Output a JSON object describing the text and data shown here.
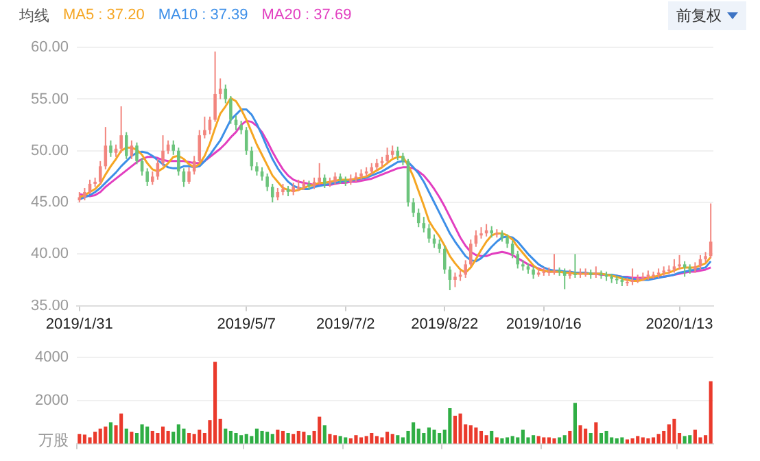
{
  "chart_data": [
    {
      "type": "candlestick",
      "legend_title": "均线",
      "legend": "top left",
      "grid": "y",
      "annotations": [
        "前复权"
      ],
      "categories": [
        "2019/1/31",
        null,
        null,
        null,
        null,
        null,
        null,
        null,
        null,
        null,
        null,
        null,
        null,
        null,
        null,
        null,
        null,
        null,
        null,
        null,
        null,
        null,
        null,
        null,
        null,
        null,
        null,
        null,
        null,
        null,
        null,
        null,
        "2019/5/7",
        null,
        null,
        null,
        null,
        null,
        null,
        null,
        null,
        null,
        null,
        null,
        null,
        null,
        null,
        null,
        null,
        null,
        null,
        "2019/7/2",
        null,
        null,
        null,
        null,
        null,
        null,
        null,
        null,
        null,
        null,
        null,
        null,
        null,
        null,
        null,
        null,
        null,
        null,
        "2019/8/22",
        null,
        null,
        null,
        null,
        null,
        null,
        null,
        null,
        null,
        null,
        null,
        null,
        null,
        null,
        null,
        null,
        null,
        null,
        "2019/10/16",
        null,
        null,
        null,
        null,
        null,
        null,
        null,
        null,
        null,
        null,
        null,
        null,
        null,
        null,
        null,
        null,
        null,
        null,
        null,
        null,
        null,
        null,
        null,
        null,
        null,
        "2020/1/13",
        null,
        null,
        null,
        null,
        null,
        null
      ],
      "ohlc": [
        [
          45.2,
          46.0,
          45.0,
          45.5
        ],
        [
          45.5,
          46.4,
          45.2,
          46.0
        ],
        [
          46.0,
          47.2,
          45.8,
          46.8
        ],
        [
          46.8,
          47.4,
          46.5,
          47.0
        ],
        [
          47.0,
          49.0,
          46.8,
          48.5
        ],
        [
          48.5,
          52.3,
          48.2,
          50.5
        ],
        [
          50.5,
          51.0,
          49.4,
          49.8
        ],
        [
          49.8,
          50.6,
          49.4,
          50.2
        ],
        [
          50.2,
          54.3,
          49.8,
          51.5
        ],
        [
          51.5,
          51.8,
          49.2,
          49.5
        ],
        [
          49.5,
          51.0,
          49.2,
          50.5
        ],
        [
          50.5,
          50.8,
          48.7,
          49.0
        ],
        [
          49.0,
          49.3,
          47.6,
          48.0
        ],
        [
          48.0,
          48.3,
          46.6,
          47.0
        ],
        [
          47.0,
          48.0,
          46.7,
          47.5
        ],
        [
          47.5,
          49.2,
          47.2,
          48.8
        ],
        [
          48.8,
          51.5,
          48.5,
          50.0
        ],
        [
          50.0,
          51.0,
          49.7,
          50.6
        ],
        [
          50.6,
          51.0,
          49.6,
          50.0
        ],
        [
          50.0,
          50.3,
          47.6,
          48.0
        ],
        [
          48.0,
          48.3,
          46.5,
          47.0
        ],
        [
          47.0,
          48.4,
          46.8,
          48.0
        ],
        [
          48.0,
          49.5,
          47.7,
          49.0
        ],
        [
          49.0,
          52.0,
          48.8,
          51.5
        ],
        [
          51.5,
          53.3,
          51.2,
          52.0
        ],
        [
          52.0,
          53.3,
          51.6,
          53.0
        ],
        [
          53.0,
          59.6,
          52.8,
          55.5
        ],
        [
          55.5,
          57.0,
          55.0,
          56.0
        ],
        [
          56.0,
          56.4,
          54.6,
          55.0
        ],
        [
          55.0,
          55.3,
          52.6,
          53.0
        ],
        [
          53.0,
          53.4,
          52.0,
          52.5
        ],
        [
          52.5,
          52.9,
          51.6,
          52.0
        ],
        [
          52.0,
          52.3,
          49.6,
          50.0
        ],
        [
          50.0,
          50.4,
          48.1,
          48.5
        ],
        [
          48.5,
          48.9,
          47.6,
          48.0
        ],
        [
          48.0,
          48.4,
          47.1,
          47.5
        ],
        [
          47.5,
          47.8,
          46.1,
          46.5
        ],
        [
          46.5,
          46.8,
          45.0,
          45.5
        ],
        [
          45.5,
          46.4,
          45.2,
          46.0
        ],
        [
          46.0,
          46.8,
          45.7,
          46.3
        ],
        [
          46.3,
          46.6,
          45.6,
          46.0
        ],
        [
          46.0,
          46.9,
          45.7,
          46.5
        ],
        [
          46.5,
          47.2,
          46.1,
          46.5
        ],
        [
          46.5,
          47.2,
          46.2,
          46.8
        ],
        [
          46.8,
          47.1,
          46.2,
          46.6
        ],
        [
          46.6,
          47.4,
          46.3,
          47.0
        ],
        [
          47.0,
          48.8,
          46.7,
          47.4
        ],
        [
          47.4,
          47.7,
          46.4,
          46.8
        ],
        [
          46.8,
          47.4,
          46.5,
          47.0
        ],
        [
          47.0,
          47.9,
          46.7,
          47.5
        ],
        [
          47.5,
          47.8,
          46.8,
          47.2
        ],
        [
          47.2,
          47.5,
          46.6,
          47.0
        ],
        [
          47.0,
          47.7,
          46.7,
          47.3
        ],
        [
          47.3,
          47.9,
          47.0,
          47.5
        ],
        [
          47.5,
          48.2,
          47.2,
          47.8
        ],
        [
          47.8,
          48.4,
          47.5,
          48.0
        ],
        [
          48.0,
          48.8,
          47.7,
          48.4
        ],
        [
          48.4,
          49.2,
          48.1,
          48.8
        ],
        [
          48.8,
          49.4,
          48.4,
          49.0
        ],
        [
          49.0,
          50.3,
          48.7,
          49.6
        ],
        [
          49.6,
          50.5,
          49.3,
          50.0
        ],
        [
          50.0,
          50.4,
          49.1,
          49.5
        ],
        [
          49.5,
          49.8,
          48.6,
          49.0
        ],
        [
          49.0,
          49.2,
          44.6,
          45.0
        ],
        [
          45.0,
          45.4,
          43.6,
          44.0
        ],
        [
          44.0,
          44.4,
          42.6,
          43.0
        ],
        [
          43.0,
          43.6,
          42.1,
          42.5
        ],
        [
          42.5,
          42.9,
          41.1,
          41.5
        ],
        [
          41.5,
          41.9,
          40.6,
          41.0
        ],
        [
          41.0,
          41.4,
          40.1,
          40.5
        ],
        [
          40.5,
          40.8,
          38.1,
          38.5
        ],
        [
          38.5,
          38.8,
          36.5,
          37.5
        ],
        [
          37.5,
          38.2,
          36.8,
          37.8
        ],
        [
          37.8,
          38.4,
          37.4,
          38.0
        ],
        [
          38.0,
          39.4,
          37.7,
          39.0
        ],
        [
          39.0,
          41.4,
          38.8,
          41.0
        ],
        [
          41.0,
          42.3,
          40.7,
          41.8
        ],
        [
          41.8,
          42.6,
          41.5,
          42.0
        ],
        [
          42.0,
          42.9,
          41.7,
          42.3
        ],
        [
          42.3,
          42.7,
          41.6,
          42.0
        ],
        [
          42.0,
          42.4,
          41.6,
          42.0
        ],
        [
          42.0,
          42.3,
          41.2,
          41.6
        ],
        [
          41.6,
          41.9,
          40.6,
          41.0
        ],
        [
          41.0,
          41.3,
          39.6,
          40.0
        ],
        [
          40.0,
          40.3,
          38.6,
          39.0
        ],
        [
          39.0,
          39.4,
          38.4,
          38.8
        ],
        [
          38.8,
          39.1,
          38.1,
          38.5
        ],
        [
          38.5,
          38.8,
          37.6,
          38.0
        ],
        [
          38.0,
          38.6,
          37.8,
          38.2
        ],
        [
          38.2,
          38.7,
          37.9,
          38.3
        ],
        [
          38.3,
          38.7,
          37.9,
          38.3
        ],
        [
          38.3,
          40.0,
          38.0,
          38.4
        ],
        [
          38.4,
          38.7,
          37.9,
          38.3
        ],
        [
          38.3,
          38.6,
          36.6,
          37.9
        ],
        [
          37.9,
          38.5,
          37.6,
          38.1
        ],
        [
          38.1,
          40.0,
          37.7,
          38.0
        ],
        [
          38.0,
          38.6,
          37.7,
          38.2
        ],
        [
          38.2,
          38.6,
          37.8,
          38.2
        ],
        [
          38.2,
          38.5,
          37.6,
          38.0
        ],
        [
          38.0,
          38.8,
          37.7,
          38.1
        ],
        [
          38.1,
          38.4,
          37.6,
          38.0
        ],
        [
          38.0,
          38.3,
          37.4,
          37.8
        ],
        [
          37.8,
          38.1,
          37.2,
          37.6
        ],
        [
          37.6,
          37.9,
          37.1,
          37.5
        ],
        [
          37.5,
          37.8,
          36.9,
          37.3
        ],
        [
          37.3,
          37.7,
          36.9,
          37.3
        ],
        [
          37.3,
          38.6,
          37.0,
          37.5
        ],
        [
          37.5,
          38.0,
          37.2,
          37.7
        ],
        [
          37.7,
          38.2,
          37.4,
          37.8
        ],
        [
          37.8,
          38.4,
          37.5,
          38.0
        ],
        [
          38.0,
          38.3,
          37.6,
          38.0
        ],
        [
          38.0,
          38.6,
          37.7,
          38.2
        ],
        [
          38.2,
          38.8,
          37.9,
          38.4
        ],
        [
          38.4,
          38.9,
          38.1,
          38.5
        ],
        [
          38.5,
          39.5,
          38.2,
          38.8
        ],
        [
          38.8,
          39.9,
          38.5,
          39.0
        ],
        [
          39.0,
          39.3,
          37.8,
          38.7
        ],
        [
          38.7,
          39.0,
          38.1,
          38.5
        ],
        [
          38.5,
          39.2,
          38.2,
          38.8
        ],
        [
          38.8,
          39.9,
          38.5,
          39.5
        ],
        [
          39.5,
          40.2,
          39.2,
          39.8
        ],
        [
          39.8,
          44.9,
          39.6,
          41.2
        ]
      ],
      "colors": [
        "#f2857e",
        "#f2857e",
        "#f2857e",
        "#f2857e",
        "#f2857e",
        "#f2857e",
        "#6cc47c",
        "#f2857e",
        "#f2857e",
        "#6cc47c",
        "#f2857e",
        "#6cc47c",
        "#6cc47c",
        "#6cc47c",
        "#f2857e",
        "#f2857e",
        "#f2857e",
        "#f2857e",
        "#6cc47c",
        "#6cc47c",
        "#6cc47c",
        "#f2857e",
        "#f2857e",
        "#f2857e",
        "#f2857e",
        "#f2857e",
        "#f2857e",
        "#f2857e",
        "#6cc47c",
        "#6cc47c",
        "#6cc47c",
        "#6cc47c",
        "#6cc47c",
        "#6cc47c",
        "#6cc47c",
        "#6cc47c",
        "#6cc47c",
        "#6cc47c",
        "#f2857e",
        "#f2857e",
        "#6cc47c",
        "#f2857e",
        "#f2857e",
        "#f2857e",
        "#6cc47c",
        "#f2857e",
        "#f2857e",
        "#6cc47c",
        "#f2857e",
        "#f2857e",
        "#6cc47c",
        "#6cc47c",
        "#f2857e",
        "#f2857e",
        "#f2857e",
        "#f2857e",
        "#f2857e",
        "#f2857e",
        "#f2857e",
        "#f2857e",
        "#f2857e",
        "#6cc47c",
        "#6cc47c",
        "#6cc47c",
        "#6cc47c",
        "#6cc47c",
        "#6cc47c",
        "#6cc47c",
        "#6cc47c",
        "#6cc47c",
        "#6cc47c",
        "#6cc47c",
        "#f2857e",
        "#f2857e",
        "#f2857e",
        "#f2857e",
        "#f2857e",
        "#f2857e",
        "#f2857e",
        "#6cc47c",
        "#f2857e",
        "#6cc47c",
        "#6cc47c",
        "#6cc47c",
        "#6cc47c",
        "#6cc47c",
        "#6cc47c",
        "#6cc47c",
        "#f2857e",
        "#f2857e",
        "#f2857e",
        "#f2857e",
        "#6cc47c",
        "#6cc47c",
        "#f2857e",
        "#6cc47c",
        "#f2857e",
        "#f2857e",
        "#6cc47c",
        "#f2857e",
        "#6cc47c",
        "#6cc47c",
        "#6cc47c",
        "#6cc47c",
        "#6cc47c",
        "#f2857e",
        "#f2857e",
        "#f2857e",
        "#f2857e",
        "#f2857e",
        "#f2857e",
        "#f2857e",
        "#f2857e",
        "#f2857e",
        "#f2857e",
        "#f2857e",
        "#6cc47c",
        "#6cc47c",
        "#f2857e",
        "#f2857e",
        "#f2857e",
        "#f2857e"
      ],
      "series": [
        {
          "name": "MA5 : 37.20",
          "type": "line",
          "color": "#f5a623",
          "values": [
            45.5,
            45.7,
            46.0,
            46.3,
            46.8,
            47.7,
            48.5,
            49.2,
            50.0,
            50.3,
            50.3,
            50.1,
            49.6,
            48.8,
            48.2,
            48.0,
            48.3,
            48.8,
            49.4,
            49.5,
            49.2,
            48.7,
            48.4,
            48.7,
            49.5,
            50.7,
            52.2,
            53.6,
            54.3,
            55.1,
            54.8,
            54.0,
            53.0,
            51.8,
            50.6,
            49.6,
            48.6,
            47.6,
            47.0,
            46.4,
            46.2,
            46.1,
            46.2,
            46.4,
            46.6,
            46.7,
            46.9,
            46.9,
            47.0,
            47.1,
            47.2,
            47.2,
            47.2,
            47.3,
            47.4,
            47.5,
            47.8,
            48.1,
            48.4,
            48.8,
            49.2,
            49.4,
            49.4,
            48.6,
            47.5,
            46.1,
            44.7,
            43.2,
            42.4,
            41.7,
            40.8,
            39.8,
            39.1,
            38.5,
            38.2,
            38.7,
            39.5,
            40.4,
            41.2,
            41.8,
            42.0,
            42.0,
            41.8,
            41.4,
            40.7,
            40.1,
            39.5,
            38.9,
            38.5,
            38.4,
            38.3,
            38.3,
            38.3,
            38.2,
            38.2,
            38.1,
            38.1,
            38.1,
            38.1,
            38.1,
            38.1,
            38.0,
            37.9,
            37.8,
            37.6,
            37.5,
            37.4,
            37.4,
            37.5,
            37.7,
            37.8,
            37.9,
            38.1,
            38.2,
            38.4,
            38.6,
            38.7,
            38.7,
            38.7,
            38.9,
            39.1,
            39.7
          ]
        },
        {
          "name": "MA10 : 37.39",
          "type": "line",
          "color": "#3d8fe8",
          "values": [
            45.3,
            45.5,
            45.7,
            46.0,
            46.4,
            46.9,
            47.4,
            47.9,
            48.5,
            49.0,
            49.5,
            49.8,
            49.9,
            49.8,
            49.5,
            49.1,
            48.7,
            48.4,
            48.3,
            48.3,
            48.5,
            48.5,
            48.4,
            48.5,
            49.0,
            49.6,
            50.3,
            51.0,
            52.0,
            53.0,
            53.5,
            54.0,
            54.0,
            53.5,
            52.6,
            51.5,
            50.3,
            49.2,
            48.3,
            47.6,
            47.0,
            46.6,
            46.4,
            46.3,
            46.3,
            46.5,
            46.6,
            46.7,
            46.8,
            46.9,
            47.0,
            47.1,
            47.1,
            47.2,
            47.3,
            47.4,
            47.6,
            47.8,
            48.0,
            48.3,
            48.6,
            48.9,
            49.0,
            48.9,
            48.4,
            47.8,
            47.0,
            46.0,
            45.0,
            44.0,
            43.0,
            42.0,
            41.2,
            40.5,
            39.8,
            39.4,
            39.3,
            39.6,
            40.1,
            40.7,
            41.2,
            41.6,
            41.7,
            41.6,
            41.2,
            40.6,
            40.0,
            39.5,
            39.0,
            38.7,
            38.5,
            38.4,
            38.4,
            38.3,
            38.3,
            38.2,
            38.2,
            38.2,
            38.1,
            38.1,
            38.1,
            38.0,
            38.0,
            37.9,
            37.8,
            37.7,
            37.6,
            37.5,
            37.5,
            37.5,
            37.6,
            37.7,
            37.8,
            37.9,
            38.0,
            38.2,
            38.3,
            38.4,
            38.5,
            38.6,
            38.7,
            39.3
          ]
        },
        {
          "name": "MA20 : 37.69",
          "type": "line",
          "color": "#e23fc0",
          "values": [
            45.8,
            45.7,
            45.6,
            45.7,
            46.0,
            46.5,
            46.9,
            47.3,
            47.7,
            48.1,
            48.5,
            48.9,
            49.2,
            49.4,
            49.4,
            49.3,
            49.1,
            49.0,
            49.0,
            49.0,
            49.0,
            48.9,
            48.8,
            48.8,
            49.0,
            49.4,
            49.8,
            50.2,
            50.7,
            51.3,
            51.8,
            52.5,
            52.9,
            52.8,
            52.4,
            51.8,
            50.9,
            49.9,
            49.0,
            48.2,
            47.6,
            47.2,
            47.0,
            46.9,
            46.8,
            46.7,
            46.7,
            46.7,
            46.7,
            46.8,
            46.9,
            46.9,
            47.0,
            47.0,
            47.1,
            47.2,
            47.3,
            47.5,
            47.7,
            47.9,
            48.1,
            48.3,
            48.4,
            48.4,
            48.3,
            48.0,
            47.6,
            47.0,
            46.3,
            45.5,
            44.6,
            43.6,
            42.6,
            41.6,
            40.8,
            40.2,
            39.9,
            39.8,
            39.8,
            40.0,
            40.1,
            40.2,
            40.1,
            39.9,
            39.6,
            39.3,
            39.0,
            38.8,
            38.6,
            38.4,
            38.3,
            38.3,
            38.3,
            38.3,
            38.2,
            38.2,
            38.2,
            38.1,
            38.1,
            38.1,
            38.0,
            38.0,
            37.9,
            37.9,
            37.8,
            37.8,
            37.7,
            37.7,
            37.7,
            37.7,
            37.7,
            37.8,
            37.8,
            37.9,
            38.0,
            38.1,
            38.2,
            38.3,
            38.3,
            38.4,
            38.5,
            38.7
          ]
        }
      ],
      "ylim": [
        35,
        60
      ],
      "yticks": [
        {
          "value": 35,
          "label": "35.00"
        },
        {
          "value": 40,
          "label": "40.00"
        },
        {
          "value": 45,
          "label": "45.00"
        },
        {
          "value": 50,
          "label": "50.00"
        },
        {
          "value": 55,
          "label": "55.00"
        },
        {
          "value": 60,
          "label": "60.00"
        }
      ]
    },
    {
      "type": "bar",
      "ylabel": "万股",
      "grid": "y",
      "tick_labels": "y",
      "categories": [
        "2019/1/31",
        null,
        null,
        null,
        null,
        null,
        null,
        null,
        null,
        null,
        null,
        null,
        null,
        null,
        null,
        null,
        null,
        null,
        null,
        null,
        null,
        null,
        null,
        null,
        null,
        null,
        null,
        null,
        null,
        null,
        null,
        null,
        "2019/5/7",
        null,
        null,
        null,
        null,
        null,
        null,
        null,
        null,
        null,
        null,
        null,
        null,
        null,
        null,
        null,
        null,
        null,
        null,
        "2019/7/2",
        null,
        null,
        null,
        null,
        null,
        null,
        null,
        null,
        null,
        null,
        null,
        null,
        null,
        null,
        null,
        null,
        null,
        null,
        "2019/8/22",
        null,
        null,
        null,
        null,
        null,
        null,
        null,
        null,
        null,
        null,
        null,
        null,
        null,
        null,
        null,
        null,
        null,
        null,
        "2019/10/16",
        null,
        null,
        null,
        null,
        null,
        null,
        null,
        null,
        null,
        null,
        null,
        null,
        null,
        null,
        null,
        null,
        null,
        null,
        null,
        null,
        null,
        null,
        null,
        null,
        null,
        "2020/1/13",
        null,
        null,
        null,
        null,
        null,
        null
      ],
      "values": [
        450,
        420,
        300,
        550,
        700,
        800,
        1000,
        850,
        1400,
        700,
        550,
        500,
        900,
        800,
        600,
        500,
        800,
        600,
        550,
        900,
        700,
        500,
        450,
        650,
        500,
        1100,
        3800,
        1150,
        700,
        600,
        500,
        400,
        450,
        350,
        700,
        600,
        550,
        450,
        650,
        600,
        500,
        450,
        600,
        550,
        400,
        600,
        1250,
        850,
        450,
        400,
        350,
        300,
        250,
        400,
        300,
        350,
        500,
        350,
        300,
        550,
        450,
        400,
        300,
        600,
        1000,
        700,
        500,
        750,
        650,
        500,
        650,
        1650,
        1300,
        1400,
        900,
        850,
        750,
        600,
        400,
        600,
        300,
        250,
        300,
        350,
        300,
        650,
        300,
        400,
        350,
        300,
        300,
        250,
        300,
        400,
        600,
        1900,
        850,
        700,
        500,
        1000,
        500,
        600,
        300,
        250,
        300,
        200,
        250,
        350,
        300,
        250,
        300,
        450,
        600,
        900,
        1150,
        500,
        350,
        400,
        650,
        300,
        400,
        2900
      ],
      "colors": [
        "#ea3a2c",
        "#ea3a2c",
        "#ea3a2c",
        "#ea3a2c",
        "#ea3a2c",
        "#ea3a2c",
        "#2fae44",
        "#ea3a2c",
        "#ea3a2c",
        "#2fae44",
        "#ea3a2c",
        "#2fae44",
        "#2fae44",
        "#2fae44",
        "#ea3a2c",
        "#ea3a2c",
        "#ea3a2c",
        "#ea3a2c",
        "#2fae44",
        "#2fae44",
        "#2fae44",
        "#ea3a2c",
        "#ea3a2c",
        "#ea3a2c",
        "#ea3a2c",
        "#ea3a2c",
        "#ea3a2c",
        "#ea3a2c",
        "#2fae44",
        "#2fae44",
        "#2fae44",
        "#2fae44",
        "#2fae44",
        "#2fae44",
        "#2fae44",
        "#2fae44",
        "#2fae44",
        "#2fae44",
        "#ea3a2c",
        "#ea3a2c",
        "#2fae44",
        "#ea3a2c",
        "#ea3a2c",
        "#ea3a2c",
        "#2fae44",
        "#ea3a2c",
        "#ea3a2c",
        "#2fae44",
        "#ea3a2c",
        "#ea3a2c",
        "#2fae44",
        "#2fae44",
        "#ea3a2c",
        "#ea3a2c",
        "#ea3a2c",
        "#ea3a2c",
        "#ea3a2c",
        "#ea3a2c",
        "#ea3a2c",
        "#ea3a2c",
        "#ea3a2c",
        "#2fae44",
        "#2fae44",
        "#2fae44",
        "#2fae44",
        "#2fae44",
        "#2fae44",
        "#2fae44",
        "#2fae44",
        "#2fae44",
        "#2fae44",
        "#2fae44",
        "#ea3a2c",
        "#ea3a2c",
        "#ea3a2c",
        "#ea3a2c",
        "#ea3a2c",
        "#ea3a2c",
        "#ea3a2c",
        "#2fae44",
        "#ea3a2c",
        "#2fae44",
        "#2fae44",
        "#2fae44",
        "#2fae44",
        "#2fae44",
        "#2fae44",
        "#2fae44",
        "#ea3a2c",
        "#ea3a2c",
        "#ea3a2c",
        "#ea3a2c",
        "#2fae44",
        "#2fae44",
        "#ea3a2c",
        "#2fae44",
        "#ea3a2c",
        "#ea3a2c",
        "#2fae44",
        "#ea3a2c",
        "#2fae44",
        "#2fae44",
        "#2fae44",
        "#2fae44",
        "#2fae44",
        "#ea3a2c",
        "#ea3a2c",
        "#ea3a2c",
        "#ea3a2c",
        "#ea3a2c",
        "#ea3a2c",
        "#ea3a2c",
        "#ea3a2c",
        "#ea3a2c",
        "#ea3a2c",
        "#ea3a2c",
        "#2fae44",
        "#2fae44",
        "#ea3a2c",
        "#ea3a2c",
        "#ea3a2c",
        "#ea3a2c"
      ],
      "ylim": [
        0,
        4000
      ],
      "yticks": [
        2000,
        4000
      ]
    }
  ]
}
